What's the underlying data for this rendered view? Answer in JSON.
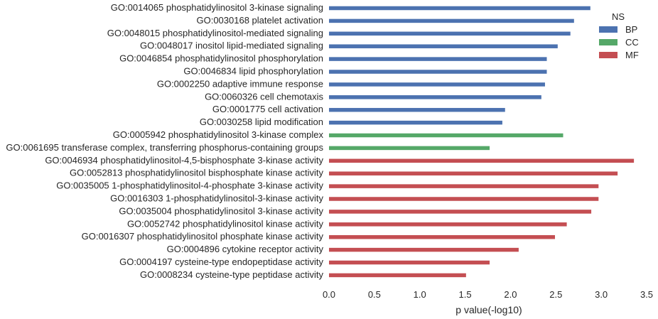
{
  "chart_data": {
    "type": "bar",
    "orientation": "horizontal",
    "xlabel": "p value(-log10)",
    "xlim": [
      0,
      3.5
    ],
    "xticks": [
      "0.0",
      "0.5",
      "1.0",
      "1.5",
      "2.0",
      "2.5",
      "3.0",
      "3.5"
    ],
    "grid": false,
    "legend": {
      "title": "NS",
      "placement": "top-right",
      "entries": [
        {
          "name": "BP",
          "color": "#4c72b0"
        },
        {
          "name": "CC",
          "color": "#55a868"
        },
        {
          "name": "MF",
          "color": "#c44e52"
        }
      ]
    },
    "bars": [
      {
        "label": "GO:0014065 phosphatidylinositol 3-kinase signaling",
        "value": 2.88,
        "ns": "BP"
      },
      {
        "label": "GO:0030168 platelet activation",
        "value": 2.7,
        "ns": "BP"
      },
      {
        "label": "GO:0048015 phosphatidylinositol-mediated signaling",
        "value": 2.66,
        "ns": "BP"
      },
      {
        "label": "GO:0048017 inositol lipid-mediated signaling",
        "value": 2.52,
        "ns": "BP"
      },
      {
        "label": "GO:0046854 phosphatidylinositol phosphorylation",
        "value": 2.4,
        "ns": "BP"
      },
      {
        "label": "GO:0046834 lipid phosphorylation",
        "value": 2.4,
        "ns": "BP"
      },
      {
        "label": "GO:0002250 adaptive immune response",
        "value": 2.38,
        "ns": "BP"
      },
      {
        "label": "GO:0060326 cell chemotaxis",
        "value": 2.34,
        "ns": "BP"
      },
      {
        "label": "GO:0001775 cell activation",
        "value": 1.94,
        "ns": "BP"
      },
      {
        "label": "GO:0030258 lipid modification",
        "value": 1.91,
        "ns": "BP"
      },
      {
        "label": "GO:0005942 phosphatidylinositol 3-kinase complex",
        "value": 2.58,
        "ns": "CC"
      },
      {
        "label": "GO:0061695 transferase complex, transferring phosphorus-containing groups",
        "value": 1.77,
        "ns": "CC"
      },
      {
        "label": "GO:0046934 phosphatidylinositol-4,5-bisphosphate 3-kinase activity",
        "value": 3.36,
        "ns": "MF"
      },
      {
        "label": "GO:0052813 phosphatidylinositol bisphosphate kinase activity",
        "value": 3.18,
        "ns": "MF"
      },
      {
        "label": "GO:0035005 1-phosphatidylinositol-4-phosphate 3-kinase activity",
        "value": 2.97,
        "ns": "MF"
      },
      {
        "label": "GO:0016303 1-phosphatidylinositol-3-kinase activity",
        "value": 2.97,
        "ns": "MF"
      },
      {
        "label": "GO:0035004 phosphatidylinositol 3-kinase activity",
        "value": 2.89,
        "ns": "MF"
      },
      {
        "label": "GO:0052742 phosphatidylinositol kinase activity",
        "value": 2.62,
        "ns": "MF"
      },
      {
        "label": "GO:0016307 phosphatidylinositol phosphate kinase activity",
        "value": 2.49,
        "ns": "MF"
      },
      {
        "label": "GO:0004896 cytokine receptor activity",
        "value": 2.09,
        "ns": "MF"
      },
      {
        "label": "GO:0004197 cysteine-type endopeptidase activity",
        "value": 1.77,
        "ns": "MF"
      },
      {
        "label": "GO:0008234 cysteine-type peptidase activity",
        "value": 1.51,
        "ns": "MF"
      }
    ]
  }
}
